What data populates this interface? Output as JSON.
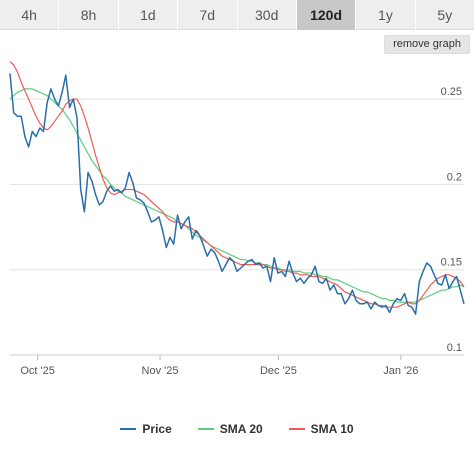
{
  "range_selector": {
    "buttons": [
      {
        "label": "4h",
        "active": false
      },
      {
        "label": "8h",
        "active": false
      },
      {
        "label": "1d",
        "active": false
      },
      {
        "label": "7d",
        "active": false
      },
      {
        "label": "30d",
        "active": false
      },
      {
        "label": "120d",
        "active": true
      },
      {
        "label": "1y",
        "active": false
      },
      {
        "label": "5y",
        "active": false
      }
    ]
  },
  "remove_graph_label": "remove graph",
  "chart_data": {
    "type": "line",
    "title": "",
    "xlabel": "",
    "ylabel": "",
    "y_ticks": [
      0.1,
      0.15,
      0.2,
      0.25
    ],
    "y_tick_labels": [
      "0.1",
      "0.15",
      "0.2",
      "0.25"
    ],
    "ylim": [
      0.1,
      0.27
    ],
    "y_axis_position": "right",
    "x_ticks": [
      {
        "label": "Oct '25",
        "day": 7
      },
      {
        "label": "Nov '25",
        "day": 38
      },
      {
        "label": "Dec '25",
        "day": 68
      },
      {
        "label": "Jan '26",
        "day": 99
      }
    ],
    "x_range": [
      0,
      115
    ],
    "grid": "horizontal",
    "legend_position": "bottom",
    "series": [
      {
        "name": "Price",
        "color": "#2a6ea9",
        "values": [
          0.265,
          0.242,
          0.24,
          0.24,
          0.228,
          0.222,
          0.231,
          0.228,
          0.233,
          0.231,
          0.248,
          0.256,
          0.25,
          0.246,
          0.254,
          0.264,
          0.245,
          0.25,
          0.239,
          0.197,
          0.184,
          0.207,
          0.202,
          0.194,
          0.188,
          0.19,
          0.196,
          0.199,
          0.196,
          0.197,
          0.195,
          0.198,
          0.207,
          0.201,
          0.192,
          0.191,
          0.189,
          0.184,
          0.178,
          0.179,
          0.181,
          0.173,
          0.163,
          0.169,
          0.165,
          0.182,
          0.174,
          0.178,
          0.181,
          0.168,
          0.173,
          0.17,
          0.164,
          0.158,
          0.162,
          0.16,
          0.155,
          0.149,
          0.153,
          0.157,
          0.155,
          0.149,
          0.151,
          0.153,
          0.155,
          0.156,
          0.153,
          0.154,
          0.151,
          0.152,
          0.143,
          0.157,
          0.148,
          0.149,
          0.146,
          0.155,
          0.148,
          0.143,
          0.145,
          0.142,
          0.145,
          0.147,
          0.152,
          0.143,
          0.142,
          0.145,
          0.138,
          0.141,
          0.136,
          0.136,
          0.13,
          0.133,
          0.138,
          0.132,
          0.13,
          0.13,
          0.131,
          0.127,
          0.131,
          0.129,
          0.128,
          0.129,
          0.125,
          0.13,
          0.133,
          0.132,
          0.136,
          0.129,
          0.128,
          0.124,
          0.143,
          0.149,
          0.154,
          0.152,
          0.147,
          0.142,
          0.141,
          0.147,
          0.139,
          0.143,
          0.146,
          0.138,
          0.13
        ]
      },
      {
        "name": "SMA 20",
        "color": "#5fcc7e",
        "values": [
          0.25,
          0.252,
          0.254,
          0.255,
          0.256,
          0.256,
          0.256,
          0.255,
          0.254,
          0.253,
          0.252,
          0.25,
          0.248,
          0.246,
          0.244,
          0.241,
          0.238,
          0.234,
          0.23,
          0.226,
          0.222,
          0.218,
          0.214,
          0.211,
          0.208,
          0.205,
          0.203,
          0.2,
          0.198,
          0.196,
          0.195,
          0.193,
          0.192,
          0.191,
          0.19,
          0.189,
          0.188,
          0.187,
          0.186,
          0.185,
          0.184,
          0.183,
          0.182,
          0.181,
          0.18,
          0.178,
          0.177,
          0.176,
          0.174,
          0.172,
          0.17,
          0.169,
          0.167,
          0.166,
          0.164,
          0.163,
          0.162,
          0.161,
          0.16,
          0.159,
          0.158,
          0.157,
          0.156,
          0.156,
          0.155,
          0.155,
          0.154,
          0.154,
          0.153,
          0.153,
          0.152,
          0.151,
          0.151,
          0.15,
          0.15,
          0.15,
          0.149,
          0.149,
          0.149,
          0.148,
          0.148,
          0.148,
          0.147,
          0.147,
          0.146,
          0.146,
          0.145,
          0.144,
          0.144,
          0.143,
          0.142,
          0.141,
          0.14,
          0.139,
          0.138,
          0.137,
          0.137,
          0.136,
          0.135,
          0.134,
          0.133,
          0.133,
          0.132,
          0.132,
          0.131,
          0.131,
          0.131,
          0.131,
          0.131,
          0.131,
          0.132,
          0.133,
          0.134,
          0.135,
          0.136,
          0.137,
          0.138,
          0.138,
          0.139,
          0.14,
          0.14,
          0.141,
          0.14
        ]
      },
      {
        "name": "SMA 10",
        "color": "#ef5a56",
        "values": [
          0.272,
          0.27,
          0.266,
          0.26,
          0.255,
          0.25,
          0.245,
          0.24,
          0.236,
          0.233,
          0.232,
          0.234,
          0.237,
          0.24,
          0.243,
          0.247,
          0.249,
          0.25,
          0.25,
          0.246,
          0.24,
          0.233,
          0.225,
          0.217,
          0.21,
          0.203,
          0.198,
          0.195,
          0.194,
          0.195,
          0.196,
          0.197,
          0.197,
          0.197,
          0.196,
          0.195,
          0.194,
          0.192,
          0.19,
          0.188,
          0.186,
          0.184,
          0.181,
          0.179,
          0.178,
          0.178,
          0.177,
          0.176,
          0.175,
          0.174,
          0.172,
          0.17,
          0.168,
          0.166,
          0.164,
          0.162,
          0.16,
          0.158,
          0.157,
          0.156,
          0.155,
          0.154,
          0.153,
          0.153,
          0.153,
          0.153,
          0.153,
          0.153,
          0.153,
          0.152,
          0.151,
          0.151,
          0.15,
          0.15,
          0.149,
          0.149,
          0.148,
          0.148,
          0.147,
          0.147,
          0.147,
          0.146,
          0.146,
          0.146,
          0.145,
          0.144,
          0.143,
          0.142,
          0.141,
          0.139,
          0.137,
          0.136,
          0.135,
          0.134,
          0.133,
          0.132,
          0.131,
          0.13,
          0.13,
          0.129,
          0.129,
          0.128,
          0.128,
          0.128,
          0.128,
          0.129,
          0.13,
          0.131,
          0.13,
          0.13,
          0.132,
          0.135,
          0.138,
          0.141,
          0.143,
          0.145,
          0.146,
          0.147,
          0.147,
          0.146,
          0.145,
          0.143,
          0.14
        ]
      }
    ]
  }
}
